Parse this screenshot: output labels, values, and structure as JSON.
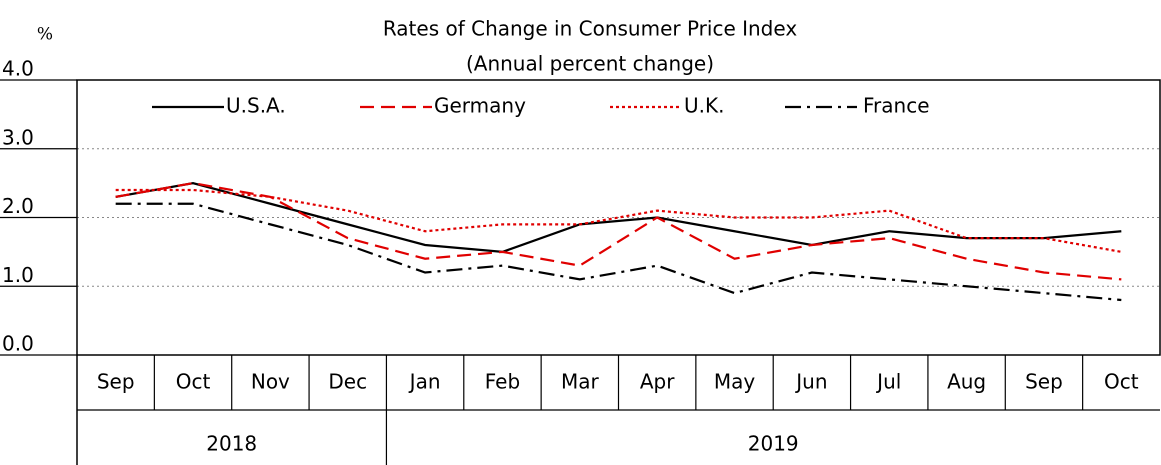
{
  "chart_data": {
    "type": "line",
    "title": "Rates of Change in Consumer Price Index",
    "subtitle": "(Annual percent change)",
    "y_label": "%",
    "categories": [
      "Sep",
      "Oct",
      "Nov",
      "Dec",
      "Jan",
      "Feb",
      "Mar",
      "Apr",
      "May",
      "Jun",
      "Jul",
      "Aug",
      "Sep",
      "Oct"
    ],
    "groups": [
      {
        "label": "2018",
        "count": 4
      },
      {
        "label": "2019",
        "count": 10
      }
    ],
    "series": [
      {
        "name": "U.S.A.",
        "color": "#000000",
        "dash": "solid",
        "values": [
          2.3,
          2.5,
          2.2,
          1.9,
          1.6,
          1.5,
          1.9,
          2.0,
          1.8,
          1.6,
          1.8,
          1.7,
          1.7,
          1.8
        ]
      },
      {
        "name": "Germany",
        "color": "#e00000",
        "dash": "dashed",
        "values": [
          2.3,
          2.5,
          2.3,
          1.7,
          1.4,
          1.5,
          1.3,
          2.0,
          1.4,
          1.6,
          1.7,
          1.4,
          1.2,
          1.1
        ]
      },
      {
        "name": "U.K.",
        "color": "#e00000",
        "dash": "dotted",
        "values": [
          2.4,
          2.4,
          2.3,
          2.1,
          1.8,
          1.9,
          1.9,
          2.1,
          2.0,
          2.0,
          2.1,
          1.7,
          1.7,
          1.5
        ]
      },
      {
        "name": "France",
        "color": "#000000",
        "dash": "dashdot",
        "values": [
          2.2,
          2.2,
          1.9,
          1.6,
          1.2,
          1.3,
          1.1,
          1.3,
          0.9,
          1.2,
          1.1,
          1.0,
          0.9,
          0.8
        ]
      }
    ],
    "ylim": [
      0,
      4
    ],
    "yticks": [
      {
        "value": 0,
        "label": "0.0"
      },
      {
        "value": 1,
        "label": "1.0"
      },
      {
        "value": 2,
        "label": "2.0"
      },
      {
        "value": 3,
        "label": "3.0"
      },
      {
        "value": 4,
        "label": "4.0"
      }
    ],
    "grid": true,
    "legend": "top"
  }
}
